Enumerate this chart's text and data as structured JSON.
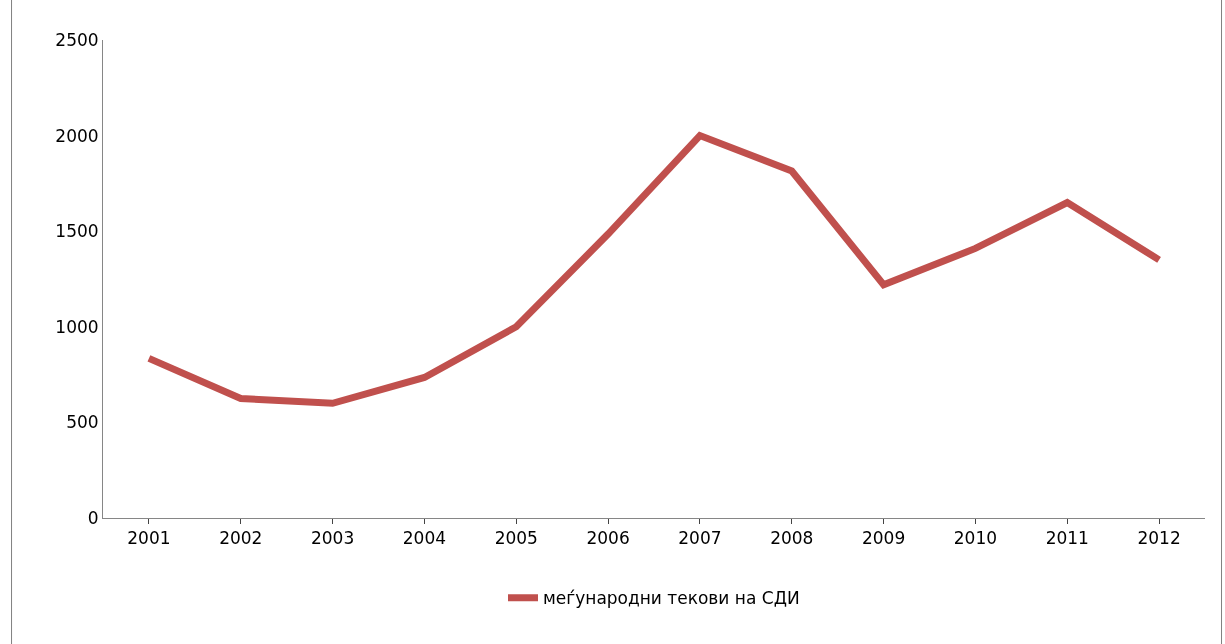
{
  "chart_data": {
    "type": "line",
    "categories": [
      "2001",
      "2002",
      "2003",
      "2004",
      "2005",
      "2006",
      "2007",
      "2008",
      "2009",
      "2010",
      "2011",
      "2012"
    ],
    "series": [
      {
        "name": "меѓународни текови на СДИ",
        "color": "#c0504d",
        "values": [
          835,
          625,
          600,
          735,
          1000,
          1485,
          2000,
          1815,
          1220,
          1410,
          1650,
          1350
        ]
      }
    ],
    "ylim": [
      0,
      2500
    ],
    "yticks": [
      0,
      500,
      1000,
      1500,
      2000,
      2500
    ],
    "grid": false,
    "legend": "bottom",
    "marker": "none",
    "line_style": "solid"
  }
}
